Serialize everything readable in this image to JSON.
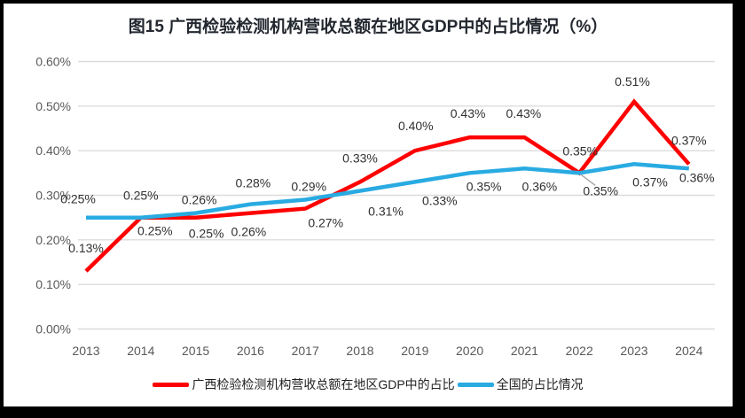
{
  "frame": {
    "background": "#000000",
    "chart_background": "#ffffff"
  },
  "chart_data": {
    "type": "line",
    "title": "图15 广西检验检测机构营收总额在地区GDP中的占比情况（%）",
    "unit": "%",
    "categories": [
      "2013",
      "2014",
      "2015",
      "2016",
      "2017",
      "2018",
      "2019",
      "2020",
      "2021",
      "2022",
      "2023",
      "2024"
    ],
    "series": [
      {
        "name": "广西检验检测机构营收总额在地区GDP中的占比",
        "color": "#fe0000",
        "values": [
          0.13,
          0.25,
          0.25,
          0.26,
          0.27,
          0.33,
          0.4,
          0.43,
          0.43,
          0.35,
          0.51,
          0.37
        ],
        "labels": [
          "0.13%",
          "0.25%",
          "0.25%",
          "0.26%",
          "0.27%",
          "0.33%",
          "0.40%",
          "0.43%",
          "0.43%",
          "0.35%",
          "0.51%",
          "0.37%"
        ],
        "label_dx": [
          0,
          16,
          12,
          -2,
          23,
          0,
          1,
          -2,
          -1,
          1,
          -2,
          0
        ],
        "label_dy": [
          -26,
          15,
          18,
          21,
          16,
          -27,
          -28,
          -27,
          -27,
          -25,
          -23,
          -27
        ]
      },
      {
        "name": "全国的占比情况",
        "color": "#29abe2",
        "values": [
          0.25,
          0.25,
          0.26,
          0.28,
          0.29,
          0.31,
          0.33,
          0.35,
          0.36,
          0.35,
          0.37,
          0.36
        ],
        "labels": [
          "0.25%",
          "0.25%",
          "0.26%",
          "0.28%",
          "0.29%",
          "0.31%",
          "0.33%",
          "0.35%",
          "0.36%",
          "0.35%",
          "0.37%",
          "0.36%"
        ],
        "label_dx": [
          -9,
          0,
          4,
          3,
          4,
          29,
          28,
          16,
          17,
          24,
          18,
          9
        ],
        "label_dy": [
          -21,
          -25,
          -15,
          -24,
          -15,
          23,
          21,
          15,
          20,
          20,
          20,
          10
        ]
      }
    ],
    "y_ticks": [
      "0.00%",
      "0.10%",
      "0.20%",
      "0.30%",
      "0.40%",
      "0.50%",
      "0.60%"
    ],
    "ylim": [
      0,
      0.6
    ],
    "y_tick_step": 0.1,
    "grid": "horizontal",
    "legend_position": "bottom",
    "leader_line": {
      "series_index": 1,
      "point_index": 9,
      "color": "#a6a6a6"
    },
    "colors": {
      "grid": "#dcdcdc",
      "axis_text": "#595959",
      "data_label_text": "#303030",
      "title_text": "#23272f"
    }
  }
}
